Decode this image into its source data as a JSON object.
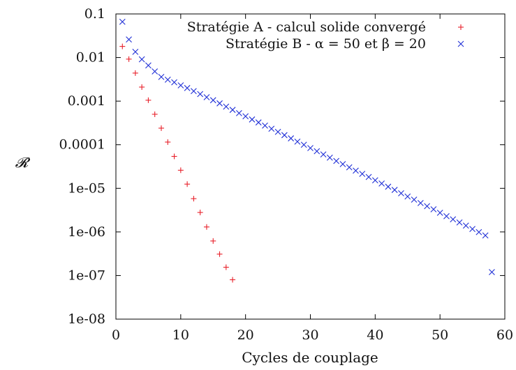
{
  "chart_data": {
    "type": "scatter",
    "title": "",
    "xlabel": "Cycles de couplage",
    "ylabel": "𝓡",
    "xlim": [
      0,
      60
    ],
    "ylim": [
      1e-08,
      0.1
    ],
    "yscale": "log",
    "grid": false,
    "legend_position": "top-right",
    "x_ticks": [
      0,
      10,
      20,
      30,
      40,
      50,
      60
    ],
    "x_tick_labels": [
      "0",
      "10",
      "20",
      "30",
      "40",
      "50",
      "60"
    ],
    "y_ticks": [
      1e-08,
      1e-07,
      1e-06,
      1e-05,
      0.0001,
      0.001,
      0.01,
      0.1
    ],
    "y_tick_labels": [
      "1e-08",
      "1e-07",
      "1e-06",
      "1e-05",
      "0.0001",
      "0.001",
      "0.01",
      "0.1"
    ],
    "series": [
      {
        "name": "Stratégie A - calcul solide convergé",
        "marker": "+",
        "color": "#e8202a",
        "x": [
          1,
          2,
          3,
          4,
          5,
          6,
          7,
          8,
          9,
          10,
          11,
          12,
          13,
          14,
          15,
          16,
          17,
          18
        ],
        "y": [
          0.018,
          0.0092,
          0.0044,
          0.0021,
          0.00105,
          0.0005,
          0.00024,
          0.000115,
          5.4e-05,
          2.6e-05,
          1.25e-05,
          5.8e-06,
          2.8e-06,
          1.3e-06,
          6.2e-07,
          3.1e-07,
          1.55e-07,
          8e-08
        ]
      },
      {
        "name": "Stratégie B - α = 50 et β = 20",
        "marker": "x",
        "color": "#1f2fd6",
        "x": [
          1,
          2,
          3,
          4,
          5,
          6,
          7,
          8,
          9,
          10,
          11,
          12,
          13,
          14,
          15,
          16,
          17,
          18,
          19,
          20,
          21,
          22,
          23,
          24,
          25,
          26,
          27,
          28,
          29,
          30,
          31,
          32,
          33,
          34,
          35,
          36,
          37,
          38,
          39,
          40,
          41,
          42,
          43,
          44,
          45,
          46,
          47,
          48,
          49,
          50,
          51,
          52,
          53,
          54,
          55,
          56,
          57,
          58
        ],
        "y": [
          0.066,
          0.026,
          0.0135,
          0.0091,
          0.0066,
          0.0048,
          0.0036,
          0.0031,
          0.0027,
          0.0023,
          0.002,
          0.0017,
          0.00145,
          0.00123,
          0.00105,
          0.00089,
          0.00075,
          0.00063,
          0.00053,
          0.00045,
          0.00038,
          0.000325,
          0.000275,
          0.000233,
          0.000197,
          0.000166,
          0.00014,
          0.000118,
          0.0001,
          8.4e-05,
          7.1e-05,
          6e-05,
          5.05e-05,
          4.25e-05,
          3.6e-05,
          3.03e-05,
          2.55e-05,
          2.15e-05,
          1.82e-05,
          1.53e-05,
          1.29e-05,
          1.09e-05,
          9.2e-06,
          7.7e-06,
          6.5e-06,
          5.5e-06,
          4.6e-06,
          3.9e-06,
          3.3e-06,
          2.75e-06,
          2.3e-06,
          1.95e-06,
          1.65e-06,
          1.4e-06,
          1.17e-06,
          9.9e-07,
          8.3e-07,
          1.2e-07
        ]
      }
    ]
  }
}
